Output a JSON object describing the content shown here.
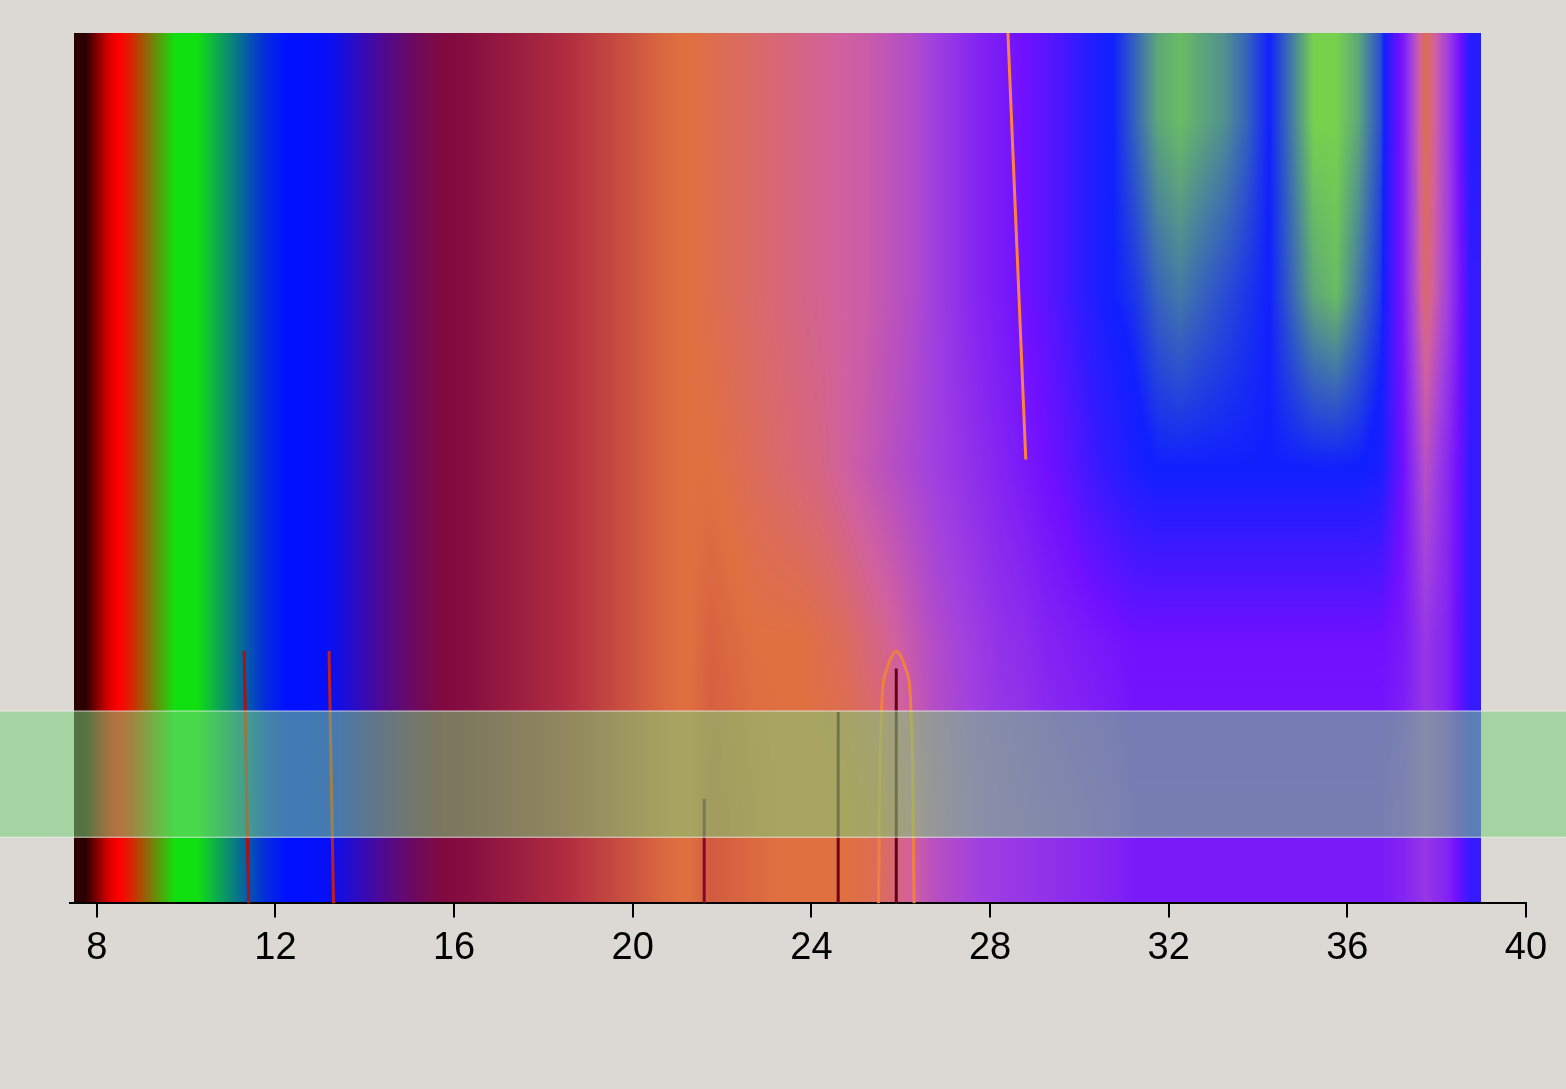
{
  "chart_data": {
    "type": "heatmap",
    "tick_labels": "x",
    "xlim": [
      7.4,
      40
    ],
    "xticks": [
      8,
      12,
      16,
      20,
      24,
      28,
      32,
      36,
      40
    ],
    "ylim": [
      0,
      1
    ],
    "x_bins": [
      7.5,
      8,
      8.5,
      9,
      9.5,
      10,
      10.5,
      11,
      11.5,
      12,
      12.5,
      13,
      13.5,
      14,
      14.5,
      15,
      15.5,
      16,
      16.5,
      17,
      17.5,
      18,
      18.5,
      19,
      19.5,
      20,
      20.5,
      21,
      21.5,
      22,
      22.5,
      23,
      23.5,
      24,
      24.5,
      25,
      25.5,
      26,
      26.5,
      27,
      27.5,
      28,
      28.5,
      29,
      29.5,
      30,
      30.5,
      31,
      31.5,
      32,
      32.5,
      33,
      33.5,
      34,
      34.5,
      35,
      35.5,
      36,
      36.5,
      37,
      37.5,
      38,
      38.5,
      39
    ],
    "y_bins": [
      0,
      0.2,
      0.4,
      0.6,
      0.8,
      1.0
    ],
    "cells": [
      [
        0.01,
        0.05,
        0.07,
        0.1,
        0.13,
        0.13,
        0.15,
        0.17,
        0.19,
        0.2,
        0.2,
        0.21,
        0.24,
        0.27,
        0.3,
        0.33,
        0.35,
        0.36,
        0.38,
        0.4,
        0.42,
        0.44,
        0.46,
        0.48,
        0.5,
        0.52,
        0.54,
        0.55,
        0.52,
        0.53,
        0.54,
        0.55,
        0.55,
        0.55,
        0.55,
        0.56,
        0.58,
        0.62,
        0.66,
        0.68,
        0.7,
        0.71,
        0.72,
        0.73,
        0.74,
        0.75,
        0.76,
        0.78,
        0.78,
        0.78,
        0.78,
        0.78,
        0.78,
        0.78,
        0.78,
        0.78,
        0.78,
        0.78,
        0.78,
        0.76,
        0.72,
        0.76,
        0.86
      ],
      [
        0.01,
        0.05,
        0.07,
        0.1,
        0.13,
        0.13,
        0.15,
        0.17,
        0.19,
        0.2,
        0.2,
        0.21,
        0.24,
        0.27,
        0.3,
        0.33,
        0.35,
        0.36,
        0.38,
        0.4,
        0.42,
        0.44,
        0.46,
        0.48,
        0.5,
        0.52,
        0.54,
        0.55,
        0.53,
        0.54,
        0.55,
        0.55,
        0.55,
        0.56,
        0.57,
        0.59,
        0.61,
        0.64,
        0.67,
        0.69,
        0.71,
        0.73,
        0.74,
        0.76,
        0.77,
        0.78,
        0.79,
        0.8,
        0.8,
        0.8,
        0.8,
        0.8,
        0.8,
        0.8,
        0.8,
        0.8,
        0.8,
        0.8,
        0.8,
        0.78,
        0.72,
        0.76,
        0.86
      ],
      [
        0.01,
        0.05,
        0.07,
        0.1,
        0.13,
        0.13,
        0.15,
        0.17,
        0.19,
        0.2,
        0.2,
        0.21,
        0.24,
        0.27,
        0.3,
        0.33,
        0.35,
        0.36,
        0.38,
        0.4,
        0.42,
        0.44,
        0.46,
        0.48,
        0.5,
        0.52,
        0.54,
        0.55,
        0.55,
        0.56,
        0.57,
        0.58,
        0.59,
        0.6,
        0.62,
        0.64,
        0.66,
        0.68,
        0.7,
        0.72,
        0.74,
        0.76,
        0.78,
        0.8,
        0.82,
        0.85,
        0.87,
        0.89,
        0.9,
        0.9,
        0.9,
        0.9,
        0.9,
        0.9,
        0.9,
        0.9,
        0.9,
        0.9,
        0.89,
        0.8,
        0.66,
        0.75,
        0.86
      ],
      [
        0.01,
        0.05,
        0.07,
        0.1,
        0.13,
        0.13,
        0.15,
        0.17,
        0.19,
        0.2,
        0.2,
        0.21,
        0.24,
        0.27,
        0.3,
        0.33,
        0.35,
        0.36,
        0.38,
        0.4,
        0.42,
        0.44,
        0.46,
        0.48,
        0.5,
        0.52,
        0.54,
        0.55,
        0.56,
        0.57,
        0.58,
        0.59,
        0.6,
        0.61,
        0.62,
        0.63,
        0.65,
        0.67,
        0.7,
        0.73,
        0.76,
        0.78,
        0.8,
        0.82,
        0.85,
        0.88,
        0.9,
        0.91,
        0.93,
        0.94,
        0.93,
        0.92,
        0.91,
        0.9,
        0.93,
        0.96,
        0.97,
        0.94,
        0.91,
        0.78,
        0.58,
        0.7,
        0.86
      ],
      [
        0.01,
        0.05,
        0.07,
        0.1,
        0.13,
        0.13,
        0.15,
        0.17,
        0.19,
        0.2,
        0.2,
        0.21,
        0.24,
        0.27,
        0.3,
        0.33,
        0.35,
        0.36,
        0.38,
        0.4,
        0.42,
        0.44,
        0.46,
        0.48,
        0.5,
        0.52,
        0.54,
        0.55,
        0.56,
        0.57,
        0.58,
        0.59,
        0.6,
        0.61,
        0.62,
        0.63,
        0.65,
        0.67,
        0.7,
        0.73,
        0.76,
        0.78,
        0.8,
        0.82,
        0.85,
        0.88,
        0.9,
        0.93,
        0.96,
        0.97,
        0.96,
        0.95,
        0.93,
        0.9,
        0.94,
        0.98,
        0.98,
        0.96,
        0.92,
        0.78,
        0.56,
        0.7,
        0.88
      ]
    ],
    "lines": [
      {
        "x": [
          11.4,
          11.3
        ],
        "y": [
          0,
          0.29
        ],
        "color": "#b01010"
      },
      {
        "x": [
          13.3,
          13.2
        ],
        "y": [
          0,
          0.29
        ],
        "color": "#c02020"
      },
      {
        "x": [
          21.6,
          21.6
        ],
        "y": [
          0,
          0.12
        ],
        "color": "#800a30"
      },
      {
        "x": [
          24.6,
          24.6
        ],
        "y": [
          0,
          0.22
        ],
        "color": "#700020"
      },
      {
        "x": [
          25.5,
          25.6,
          25.9,
          26.2,
          26.3
        ],
        "y": [
          0,
          0.25,
          0.29,
          0.25,
          0
        ],
        "color": "#f08040"
      },
      {
        "x": [
          25.9,
          25.9
        ],
        "y": [
          0,
          0.27
        ],
        "color": "#600018"
      },
      {
        "x": [
          28.4,
          28.8
        ],
        "y": [
          1.0,
          0.51
        ],
        "color": "#ff8040"
      }
    ],
    "highlight": {
      "ylim": [
        0.076,
        0.221
      ],
      "color": "#78d278"
    }
  }
}
